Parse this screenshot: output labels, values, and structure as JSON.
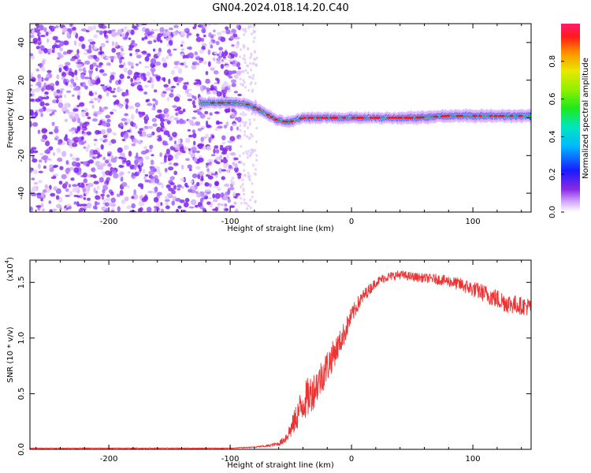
{
  "title": "GN04.2024.018.14.20.C40",
  "chart_data": [
    {
      "type": "heatmap",
      "xlabel": "Height of straight line (km)",
      "ylabel": "Frequency (Hz)",
      "xlim": [
        -265,
        148
      ],
      "ylim": [
        -50,
        50
      ],
      "x_ticks": [
        -200,
        -100,
        0,
        100
      ],
      "x_tick_labels": [
        "-200",
        "-100",
        "0",
        "100"
      ],
      "y_ticks": [
        -40,
        -20,
        0,
        20,
        40
      ],
      "y_tick_labels": [
        "-40",
        "-20",
        "0",
        "20",
        "40"
      ],
      "colorbar": {
        "label": "Normalized spectral amplitude",
        "range": [
          0,
          1
        ],
        "ticks": [
          0.0,
          0.2,
          0.4,
          0.6,
          0.8
        ],
        "tick_labels": [
          "0.0",
          "0.2",
          "0.4",
          "0.6",
          "0.8"
        ]
      },
      "ridge": {
        "x": [
          -125,
          -110,
          -95,
          -85,
          -78,
          -70,
          -62,
          -55,
          -50,
          -45,
          -40,
          -30,
          -20,
          -10,
          0,
          20,
          50,
          80,
          100,
          120,
          148
        ],
        "y": [
          8,
          8,
          8,
          7,
          5,
          2,
          -1,
          -2,
          -2,
          -1,
          0,
          0,
          0,
          0,
          0,
          0,
          0,
          1,
          1,
          1,
          1
        ]
      }
    },
    {
      "type": "line",
      "xlabel": "Height of straight line (km)",
      "ylabel": "SNR (10 * v/v)",
      "y_multiplier_label": "(x10",
      "y_multiplier_exp": "4",
      "xlim": [
        -265,
        148
      ],
      "ylim": [
        0,
        1.7
      ],
      "x_ticks": [
        -200,
        -100,
        0,
        100
      ],
      "x_tick_labels": [
        "-200",
        "-100",
        "0",
        "100"
      ],
      "y_ticks": [
        0,
        0.5,
        1.0,
        1.5
      ],
      "y_tick_labels": [
        "0.0",
        "0.5",
        "1.0",
        "1.5"
      ],
      "series": [
        {
          "color": "#ee3333",
          "x": [
            -265,
            -200,
            -150,
            -100,
            -80,
            -70,
            -60,
            -55,
            -50,
            -45,
            -40,
            -35,
            -30,
            -25,
            -20,
            -15,
            -10,
            -5,
            0,
            5,
            10,
            15,
            20,
            25,
            30,
            35,
            40,
            50,
            60,
            70,
            80,
            90,
            100,
            110,
            120,
            130,
            140,
            148
          ],
          "y": [
            0.01,
            0.01,
            0.01,
            0.01,
            0.02,
            0.03,
            0.05,
            0.09,
            0.18,
            0.3,
            0.42,
            0.48,
            0.55,
            0.65,
            0.75,
            0.85,
            0.95,
            1.07,
            1.2,
            1.3,
            1.38,
            1.44,
            1.5,
            1.53,
            1.55,
            1.56,
            1.57,
            1.55,
            1.54,
            1.53,
            1.51,
            1.48,
            1.44,
            1.4,
            1.35,
            1.31,
            1.29,
            1.28
          ],
          "noise": [
            0.004,
            0.004,
            0.004,
            0.004,
            0.006,
            0.01,
            0.02,
            0.04,
            0.08,
            0.13,
            0.17,
            0.18,
            0.16,
            0.16,
            0.15,
            0.13,
            0.11,
            0.1,
            0.08,
            0.07,
            0.06,
            0.05,
            0.04,
            0.04,
            0.04,
            0.04,
            0.04,
            0.04,
            0.04,
            0.045,
            0.05,
            0.06,
            0.07,
            0.08,
            0.09,
            0.09,
            0.08,
            0.08
          ]
        }
      ]
    }
  ]
}
